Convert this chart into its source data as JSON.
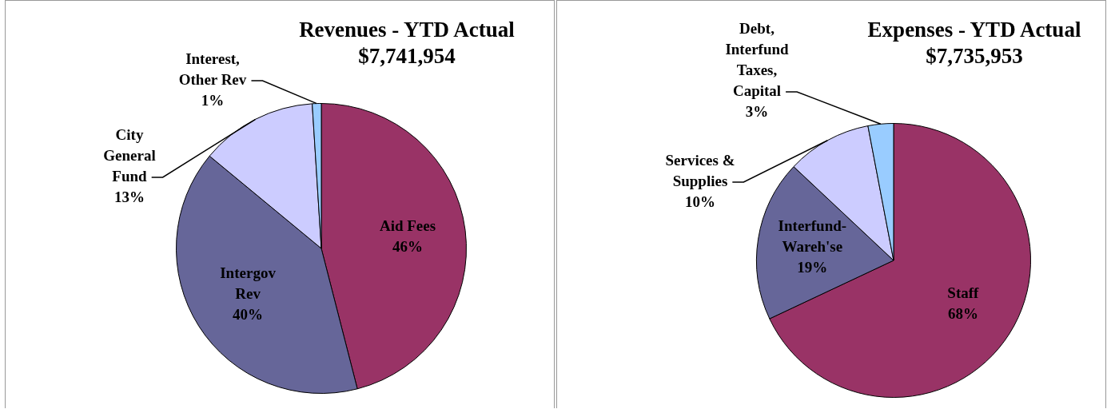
{
  "chart_data": [
    {
      "type": "pie",
      "title": "Revenues - YTD Actual",
      "subtitle": "$7,741,954",
      "categories": [
        "Aid Fees",
        "Intergov\nRev",
        "City\nGeneral\nFund",
        "Interest,\nOther Rev"
      ],
      "values": [
        46,
        40,
        13,
        1
      ],
      "value_labels": [
        "46%",
        "40%",
        "13%",
        "1%"
      ],
      "colors": [
        "#993366",
        "#666699",
        "#ccccff",
        "#99ccff"
      ]
    },
    {
      "type": "pie",
      "title": "Expenses - YTD Actual",
      "subtitle": "$7,735,953",
      "categories": [
        "Staff",
        "Interfund-\nWareh'se",
        "Services &\nSupplies",
        "Debt,\nInterfund\nTaxes,\nCapital"
      ],
      "values": [
        68,
        19,
        10,
        3
      ],
      "value_labels": [
        "68%",
        "19%",
        "10%",
        "3%"
      ],
      "colors": [
        "#993366",
        "#666699",
        "#ccccff",
        "#99ccff"
      ]
    }
  ]
}
